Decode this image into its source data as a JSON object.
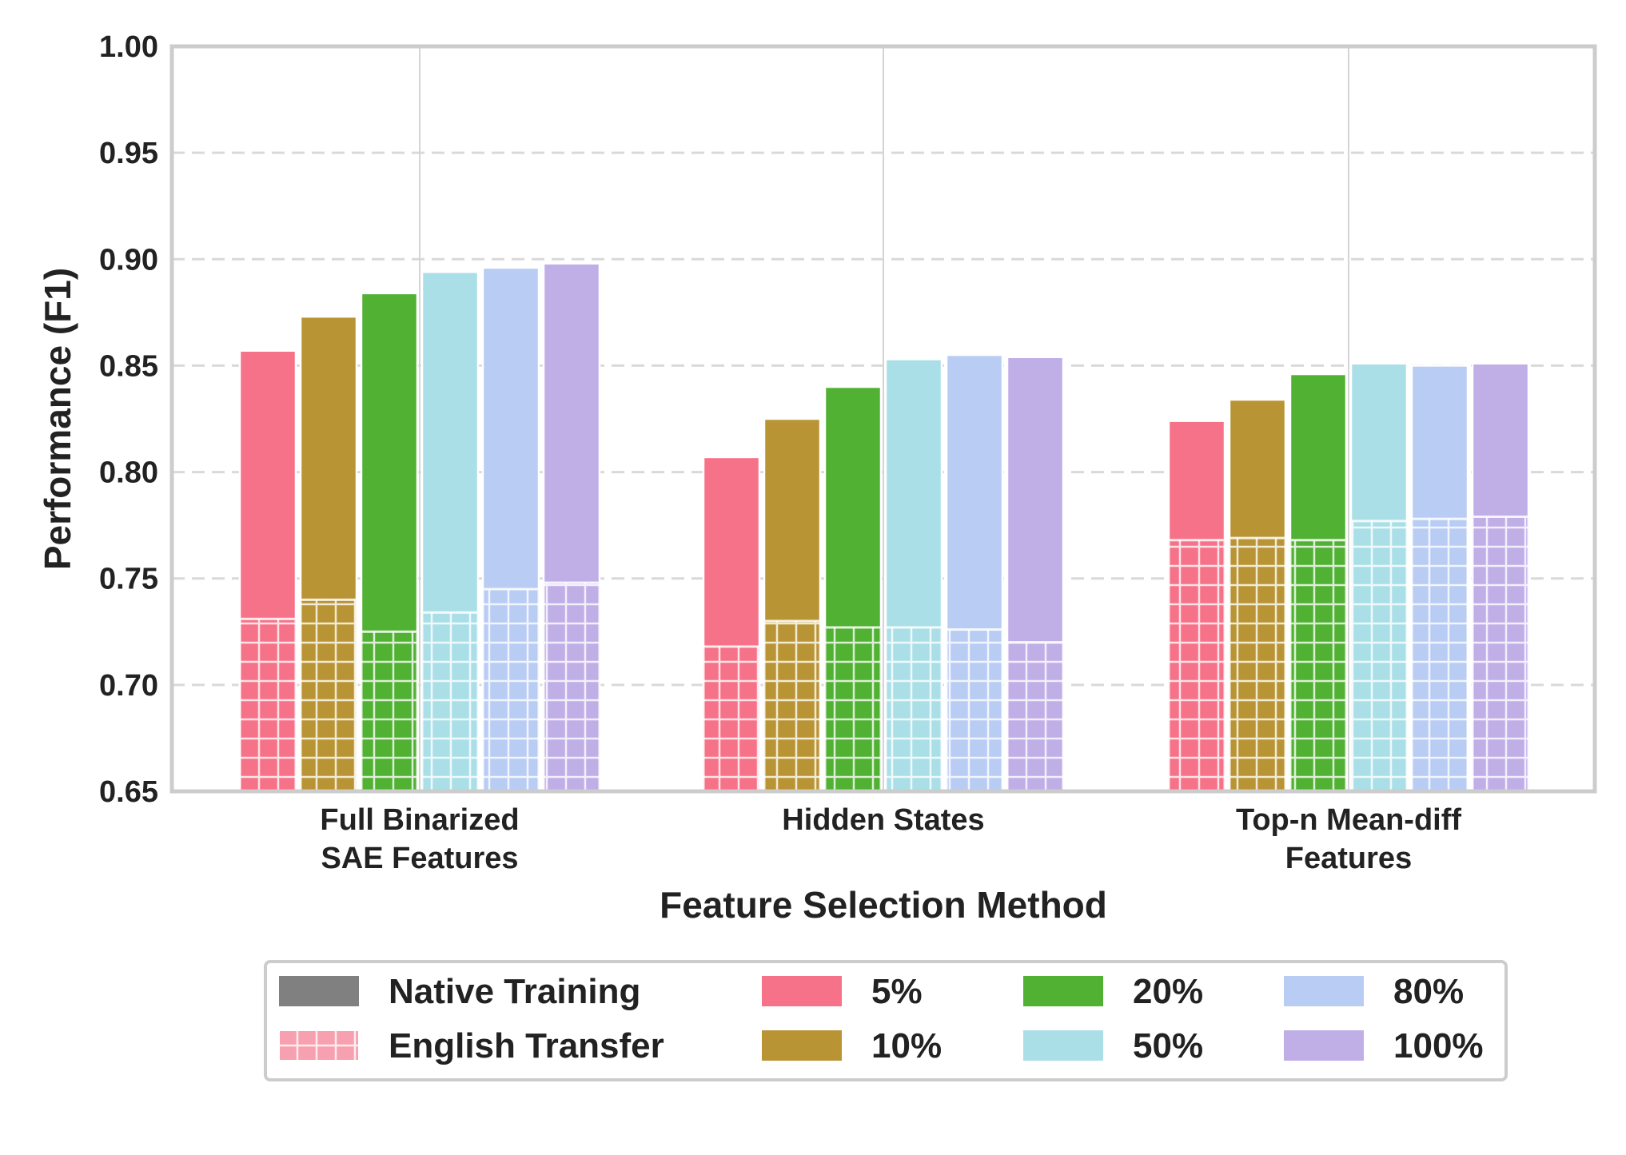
{
  "chart_data": {
    "type": "bar",
    "xlabel": "Feature Selection Method",
    "ylabel": "Performance (F1)",
    "ylim": [
      0.65,
      1.0
    ],
    "yticks": [
      "0.65",
      "0.70",
      "0.75",
      "0.80",
      "0.85",
      "0.90",
      "0.95",
      "1.00"
    ],
    "grid": "horizontal dashed",
    "legend_position": "bottom",
    "categories": [
      [
        "Full Binarized",
        "SAE Features"
      ],
      [
        "Hidden States"
      ],
      [
        "Top-n Mean-diff",
        "Features"
      ]
    ],
    "legend_styles": [
      {
        "label": "Native Training",
        "color": "#808080",
        "pattern": "solid"
      },
      {
        "label": "English Transfer",
        "color": "#f7a1b0",
        "pattern": "hatched"
      }
    ],
    "series": [
      {
        "name": "5%",
        "color": "#f67288",
        "native": [
          0.857,
          0.807,
          0.824
        ],
        "english_transfer": [
          0.731,
          0.718,
          0.768
        ]
      },
      {
        "name": "10%",
        "color": "#b99434",
        "native": [
          0.873,
          0.825,
          0.834
        ],
        "english_transfer": [
          0.74,
          0.73,
          0.769
        ]
      },
      {
        "name": "20%",
        "color": "#50b132",
        "native": [
          0.884,
          0.84,
          0.846
        ],
        "english_transfer": [
          0.725,
          0.727,
          0.768
        ]
      },
      {
        "name": "50%",
        "color": "#aadfe8",
        "native": [
          0.894,
          0.853,
          0.851
        ],
        "english_transfer": [
          0.734,
          0.727,
          0.777
        ]
      },
      {
        "name": "80%",
        "color": "#b9ccf3",
        "native": [
          0.896,
          0.855,
          0.85
        ],
        "english_transfer": [
          0.745,
          0.726,
          0.778
        ]
      },
      {
        "name": "100%",
        "color": "#c0aee7",
        "native": [
          0.898,
          0.854,
          0.851
        ],
        "english_transfer": [
          0.748,
          0.72,
          0.779
        ]
      }
    ]
  }
}
